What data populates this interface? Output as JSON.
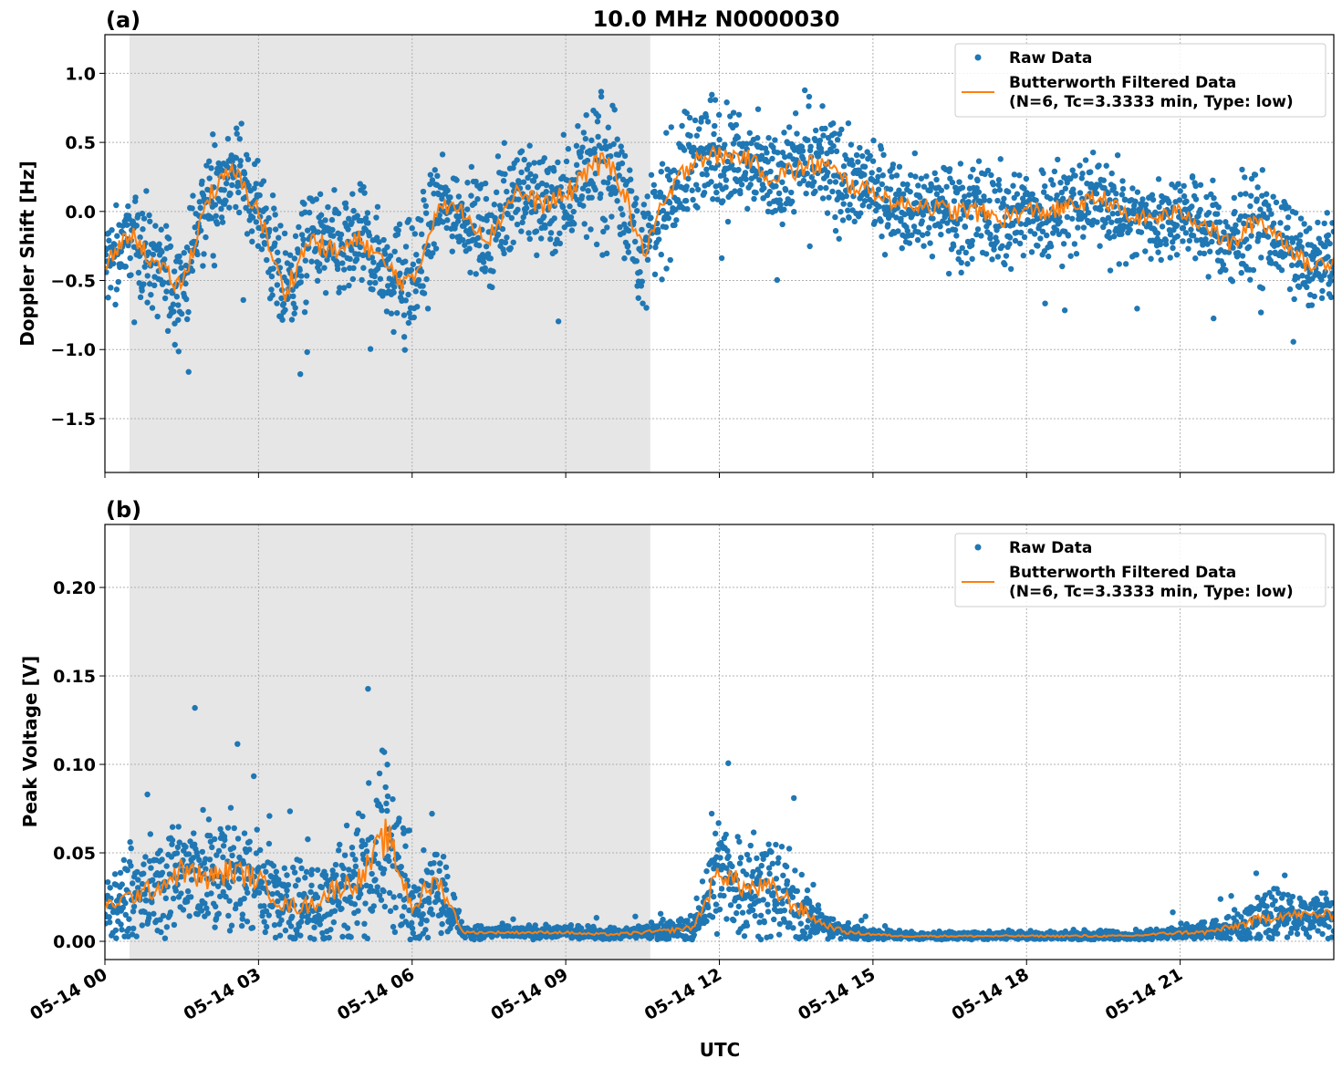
{
  "chart_data": [
    {
      "type": "scatter",
      "panel_label": "(a)",
      "title": "10.0 MHz N0000030",
      "xlabel": "",
      "ylabel": "Doppler Shift [Hz]",
      "xlim_hours": [
        0,
        24
      ],
      "ylim": [
        -1.89,
        1.28
      ],
      "yticks": [
        1.0,
        0.5,
        0.0,
        -0.5,
        -1.0,
        -1.5
      ],
      "ytick_labels": [
        "1.0",
        "0.5",
        "0.0",
        "−0.5",
        "−1.0",
        "−1.5"
      ],
      "grid": true,
      "shaded_interval_hours": [
        0.48,
        10.65
      ],
      "legend_placement": "top-right",
      "legend": [
        "Raw Data",
        "Butterworth Filtered Data",
        "(N=6, Tc=3.3333 min, Type: low)"
      ],
      "x_hours": [
        0,
        0.5,
        1,
        1.5,
        2,
        2.5,
        3,
        3.5,
        4,
        4.5,
        5,
        5.5,
        6,
        6.5,
        7,
        7.5,
        8,
        8.5,
        9,
        9.5,
        10,
        10.5,
        11,
        11.5,
        12,
        12.5,
        13,
        13.5,
        14,
        14.5,
        15,
        15.5,
        16,
        16.5,
        17,
        17.5,
        18,
        18.5,
        19,
        19.5,
        20,
        20.5,
        21,
        21.5,
        22,
        22.5,
        23,
        23.5,
        24
      ],
      "series": [
        {
          "name": "Butterworth Filtered Data",
          "values": [
            -0.4,
            -0.15,
            -0.4,
            -0.55,
            0.1,
            0.3,
            0.0,
            -0.6,
            -0.2,
            -0.3,
            -0.2,
            -0.4,
            -0.55,
            0.05,
            0.0,
            -0.2,
            0.15,
            0.05,
            0.1,
            0.35,
            0.3,
            -0.3,
            0.1,
            0.4,
            0.4,
            0.4,
            0.25,
            0.3,
            0.35,
            0.2,
            0.15,
            0.05,
            0.05,
            0.0,
            0.0,
            -0.05,
            0.0,
            0.0,
            0.05,
            0.1,
            -0.05,
            -0.05,
            0.0,
            -0.1,
            -0.25,
            -0.05,
            -0.2,
            -0.4,
            -0.35
          ]
        },
        {
          "name": "Raw Data",
          "spread": [
            0.25,
            0.25,
            0.3,
            0.3,
            0.3,
            0.3,
            0.3,
            0.35,
            0.3,
            0.35,
            0.3,
            0.3,
            0.4,
            0.25,
            0.25,
            0.3,
            0.3,
            0.3,
            0.35,
            0.4,
            0.4,
            0.35,
            0.35,
            0.35,
            0.3,
            0.25,
            0.3,
            0.35,
            0.35,
            0.3,
            0.25,
            0.25,
            0.25,
            0.3,
            0.3,
            0.3,
            0.3,
            0.3,
            0.25,
            0.25,
            0.25,
            0.25,
            0.25,
            0.25,
            0.3,
            0.3,
            0.25,
            0.25,
            0.25
          ]
        }
      ]
    },
    {
      "type": "scatter",
      "panel_label": "(b)",
      "xlabel": "UTC",
      "ylabel": "Peak Voltage [V]",
      "xlim_hours": [
        0,
        24
      ],
      "ylim": [
        -0.0103,
        0.2356
      ],
      "yticks": [
        0.0,
        0.05,
        0.1,
        0.15,
        0.2
      ],
      "ytick_labels": [
        "0.00",
        "0.05",
        "0.10",
        "0.15",
        "0.20"
      ],
      "xtick_labels": [
        "05-14 00",
        "05-14 03",
        "05-14 06",
        "05-14 09",
        "05-14 12",
        "05-14 15",
        "05-14 18",
        "05-14 21"
      ],
      "grid": true,
      "shaded_interval_hours": [
        0.48,
        10.65
      ],
      "legend_placement": "top-right",
      "legend": [
        "Raw Data",
        "Butterworth Filtered Data",
        "(N=6, Tc=3.3333 min, Type: low)"
      ],
      "x_hours": [
        0,
        0.5,
        1,
        1.5,
        2,
        2.5,
        3,
        3.5,
        4,
        4.5,
        5,
        5.5,
        6,
        6.5,
        7,
        7.5,
        8,
        8.5,
        9,
        9.5,
        10,
        10.5,
        11,
        11.5,
        12,
        12.5,
        13,
        13.5,
        14,
        14.5,
        15,
        15.5,
        16,
        16.5,
        17,
        17.5,
        18,
        18.5,
        19,
        19.5,
        20,
        20.5,
        21,
        21.5,
        22,
        22.5,
        23,
        23.5,
        24
      ],
      "series": [
        {
          "name": "Butterworth Filtered Data",
          "values": [
            0.02,
            0.025,
            0.03,
            0.04,
            0.035,
            0.04,
            0.035,
            0.02,
            0.02,
            0.03,
            0.035,
            0.06,
            0.02,
            0.035,
            0.005,
            0.005,
            0.005,
            0.005,
            0.005,
            0.004,
            0.004,
            0.005,
            0.006,
            0.008,
            0.04,
            0.03,
            0.03,
            0.02,
            0.01,
            0.005,
            0.004,
            0.003,
            0.003,
            0.003,
            0.003,
            0.003,
            0.003,
            0.003,
            0.003,
            0.003,
            0.003,
            0.004,
            0.005,
            0.005,
            0.008,
            0.012,
            0.015,
            0.015,
            0.015
          ]
        },
        {
          "name": "Raw Data",
          "spread": [
            0.015,
            0.02,
            0.025,
            0.03,
            0.03,
            0.03,
            0.025,
            0.02,
            0.02,
            0.025,
            0.03,
            0.045,
            0.025,
            0.025,
            0.003,
            0.003,
            0.003,
            0.003,
            0.003,
            0.003,
            0.003,
            0.004,
            0.005,
            0.006,
            0.03,
            0.025,
            0.025,
            0.02,
            0.008,
            0.004,
            0.003,
            0.002,
            0.002,
            0.002,
            0.002,
            0.002,
            0.002,
            0.002,
            0.003,
            0.002,
            0.002,
            0.003,
            0.004,
            0.005,
            0.008,
            0.012,
            0.012,
            0.01,
            0.012
          ]
        }
      ]
    }
  ],
  "colors": {
    "raw": "#1f77b4",
    "filtered": "#ff7f0e",
    "shade": "#e6e6e6"
  }
}
